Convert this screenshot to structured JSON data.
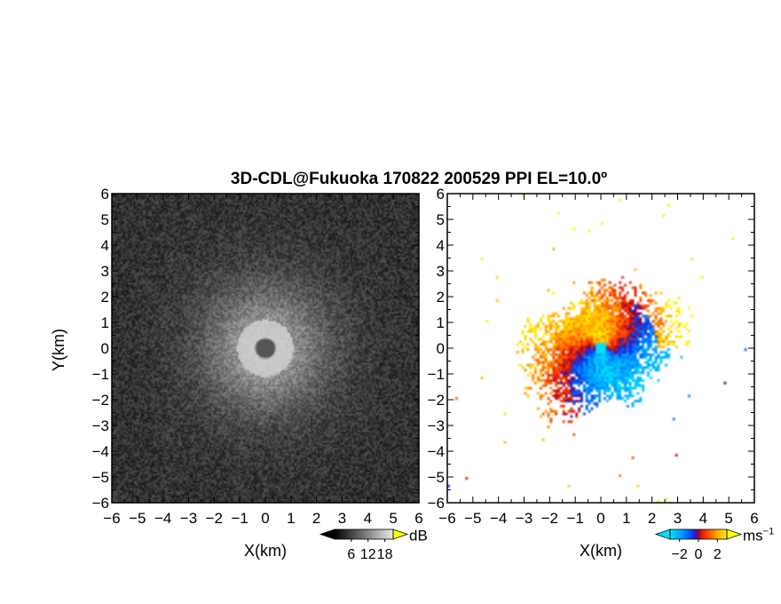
{
  "title": "3D-CDL@Fukuoka 170822 200529 PPI EL=10.0º",
  "chart_data": [
    {
      "type": "heatmap",
      "panel": "left",
      "xlabel": "X(km)",
      "ylabel": "Y(km)",
      "xlim": [
        -6,
        6
      ],
      "ylim": [
        -6,
        6
      ],
      "xticks": [
        -6,
        -5,
        -4,
        -3,
        -2,
        -1,
        0,
        1,
        2,
        3,
        4,
        5,
        6
      ],
      "yticks": [
        -6,
        -5,
        -4,
        -3,
        -2,
        -1,
        0,
        1,
        2,
        3,
        4,
        5,
        6
      ],
      "colormap": "grayscale",
      "colorbar": {
        "unit": "dB",
        "ticks": [
          6,
          12,
          18
        ],
        "range": [
          0,
          21
        ],
        "low_color": "#000000",
        "high_color": "#ffff00"
      },
      "field": {
        "center": [
          0,
          0
        ],
        "core_radius_km": 1.1,
        "core_level_db": 18.5,
        "halo_radius_km": 3.0,
        "background_db": 4.5,
        "blind_radius_km": 0.18
      }
    },
    {
      "type": "heatmap",
      "panel": "right",
      "xlabel": "X(km)",
      "xlim": [
        -6,
        6
      ],
      "ylim": [
        -6,
        6
      ],
      "xticks": [
        -6,
        -5,
        -4,
        -3,
        -2,
        -1,
        0,
        1,
        2,
        3,
        4,
        5,
        6
      ],
      "yticks": [
        -6,
        -5,
        -4,
        -3,
        -2,
        -1,
        0,
        1,
        2,
        3,
        4,
        5,
        6
      ],
      "colormap": "diverging blue-cyan / red-orange-yellow",
      "colorbar": {
        "unit": "ms",
        "unit_exponent": "−1",
        "ticks": [
          -2,
          0,
          2
        ],
        "range": [
          -3,
          3
        ],
        "low_color": "#00e0ff",
        "high_color": "#ffff00"
      },
      "field": {
        "center": [
          0,
          0
        ],
        "extent_radius_km": 3.3,
        "receding_sector": "north-west / north",
        "approaching_sector": "south / east",
        "blind_radius_km": 0.18
      }
    }
  ]
}
